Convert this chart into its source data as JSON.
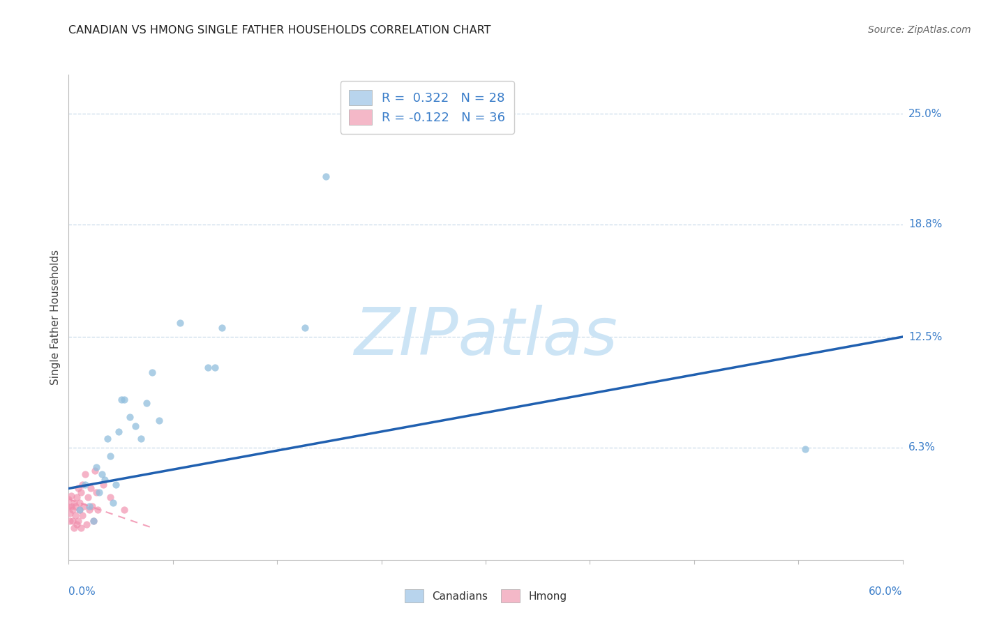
{
  "title": "CANADIAN VS HMONG SINGLE FATHER HOUSEHOLDS CORRELATION CHART",
  "source": "Source: ZipAtlas.com",
  "ylabel": "Single Father Households",
  "ytick_labels": [
    "25.0%",
    "18.8%",
    "12.5%",
    "6.3%"
  ],
  "ytick_values": [
    0.25,
    0.188,
    0.125,
    0.063
  ],
  "xlim": [
    0.0,
    0.6
  ],
  "ylim": [
    0.0,
    0.272
  ],
  "legend_entries": [
    {
      "label": "R =  0.322   N = 28",
      "color": "#b8d4ed"
    },
    {
      "label": "R = -0.122   N = 36",
      "color": "#f4b8c8"
    }
  ],
  "legend_bottom": [
    "Canadians",
    "Hmong"
  ],
  "canadians_color": "#90bedd",
  "hmong_color": "#f08baa",
  "line_blue": "#2060b0",
  "watermark_text": "ZIPatlas",
  "watermark_color": "#cce4f5",
  "canadians_x": [
    0.008,
    0.012,
    0.015,
    0.018,
    0.02,
    0.022,
    0.024,
    0.026,
    0.028,
    0.03,
    0.032,
    0.034,
    0.036,
    0.038,
    0.04,
    0.044,
    0.048,
    0.052,
    0.056,
    0.06,
    0.065,
    0.08,
    0.1,
    0.105,
    0.11,
    0.17,
    0.185,
    0.53
  ],
  "canadians_y": [
    0.028,
    0.042,
    0.03,
    0.022,
    0.052,
    0.038,
    0.048,
    0.045,
    0.068,
    0.058,
    0.032,
    0.042,
    0.072,
    0.09,
    0.09,
    0.08,
    0.075,
    0.068,
    0.088,
    0.105,
    0.078,
    0.133,
    0.108,
    0.108,
    0.13,
    0.13,
    0.215,
    0.062
  ],
  "hmong_x": [
    0.0,
    0.0,
    0.001,
    0.001,
    0.002,
    0.002,
    0.003,
    0.003,
    0.004,
    0.004,
    0.005,
    0.005,
    0.006,
    0.006,
    0.007,
    0.007,
    0.008,
    0.008,
    0.009,
    0.009,
    0.01,
    0.01,
    0.011,
    0.012,
    0.013,
    0.014,
    0.015,
    0.016,
    0.017,
    0.018,
    0.019,
    0.02,
    0.021,
    0.025,
    0.03,
    0.04
  ],
  "hmong_y": [
    0.03,
    0.034,
    0.022,
    0.026,
    0.03,
    0.036,
    0.022,
    0.028,
    0.018,
    0.032,
    0.025,
    0.03,
    0.02,
    0.035,
    0.022,
    0.04,
    0.028,
    0.032,
    0.018,
    0.038,
    0.025,
    0.042,
    0.03,
    0.048,
    0.02,
    0.035,
    0.028,
    0.04,
    0.03,
    0.022,
    0.05,
    0.038,
    0.028,
    0.042,
    0.035,
    0.028
  ],
  "blue_line_x": [
    0.0,
    0.6
  ],
  "blue_line_y": [
    0.04,
    0.125
  ],
  "pink_line_x": [
    0.0,
    0.06
  ],
  "pink_line_y": [
    0.034,
    0.018
  ],
  "xtick_positions": [
    0.0,
    0.075,
    0.15,
    0.225,
    0.3,
    0.375,
    0.45,
    0.525,
    0.6
  ],
  "background_color": "#ffffff",
  "grid_color": "#c5d8e8",
  "marker_size": 55,
  "line_width": 2.5
}
